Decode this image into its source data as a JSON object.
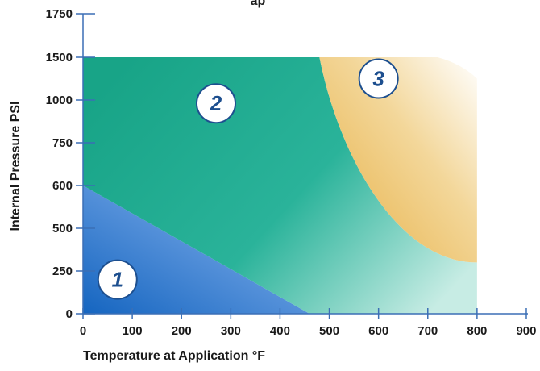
{
  "chart_data": {
    "type": "area",
    "title_partial": "ap",
    "xlabel": "Temperature at Application °F",
    "ylabel": "Internal Pressure PSI",
    "xlim": [
      0,
      900
    ],
    "x_ticks": [
      "0",
      "100",
      "200",
      "300",
      "400",
      "500",
      "600",
      "700",
      "800",
      "900"
    ],
    "x_tick_values": [
      0,
      100,
      200,
      300,
      400,
      500,
      600,
      700,
      800,
      900
    ],
    "y_ticks": [
      "0",
      "250",
      "500",
      "600",
      "750",
      "1000",
      "1500",
      "1750"
    ],
    "y_tick_values": [
      0,
      250,
      500,
      600,
      750,
      1000,
      1500,
      1750
    ],
    "grid": false,
    "regions": [
      {
        "label": "1",
        "color": "#1f6fc4",
        "boundary": [
          [
            0,
            0
          ],
          [
            0,
            600
          ],
          [
            460,
            0
          ]
        ]
      },
      {
        "label": "2",
        "color": "#1fae8f",
        "boundary": [
          [
            0,
            600
          ],
          [
            0,
            1500
          ],
          [
            480,
            1500
          ],
          [
            800,
            300
          ],
          [
            800,
            0
          ],
          [
            460,
            0
          ]
        ]
      },
      {
        "label": "3",
        "color": "#eab752",
        "boundary": [
          [
            480,
            1500
          ],
          [
            720,
            1500
          ],
          [
            800,
            1250
          ],
          [
            800,
            300
          ]
        ]
      }
    ]
  }
}
